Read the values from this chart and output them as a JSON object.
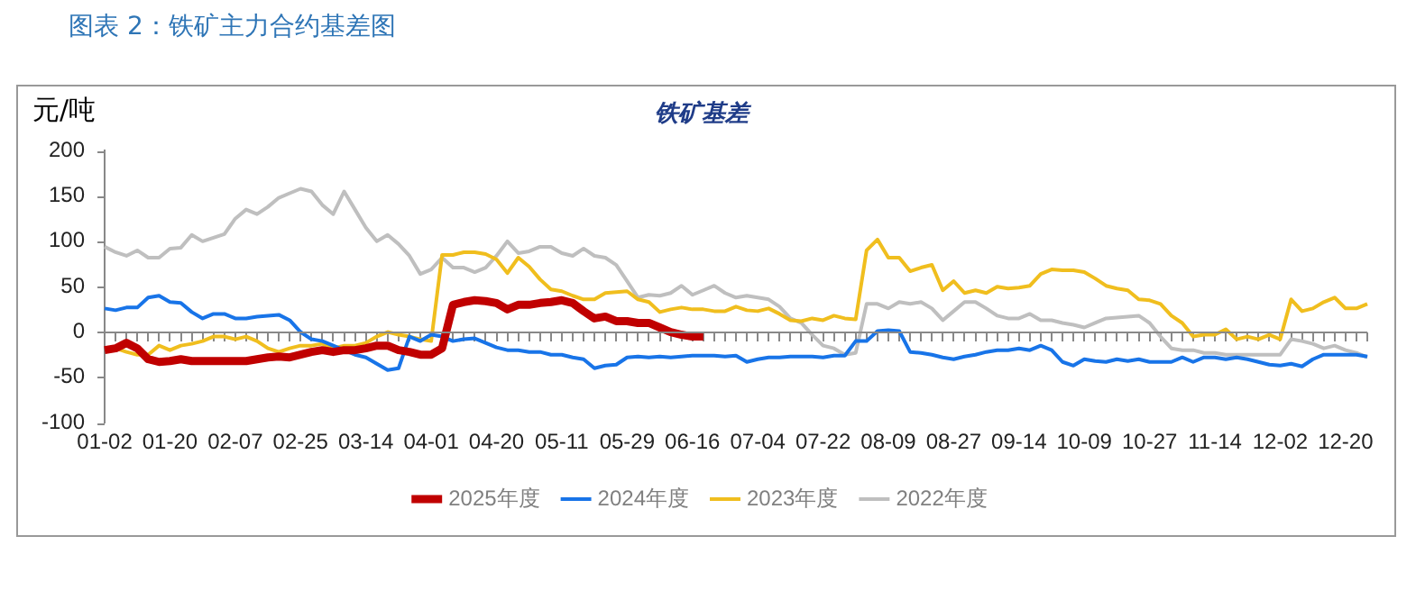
{
  "chart_data": {
    "type": "line",
    "title": "图表 2：铁矿主力合约基差图",
    "subtitle": "铁矿基差",
    "ylabel": "元/吨",
    "categories": [
      "01-02",
      null,
      null,
      null,
      null,
      null,
      "01-20",
      null,
      null,
      null,
      null,
      null,
      "02-07",
      null,
      null,
      null,
      null,
      null,
      "02-25",
      null,
      null,
      null,
      null,
      null,
      "03-14",
      null,
      null,
      null,
      null,
      null,
      "04-01",
      null,
      null,
      null,
      null,
      null,
      "04-20",
      null,
      null,
      null,
      null,
      null,
      "05-11",
      null,
      null,
      null,
      null,
      null,
      "05-29",
      null,
      null,
      null,
      null,
      null,
      "06-16",
      null,
      null,
      null,
      null,
      null,
      "07-04",
      null,
      null,
      null,
      null,
      null,
      "07-22",
      null,
      null,
      null,
      null,
      null,
      "08-09",
      null,
      null,
      null,
      null,
      null,
      "08-27",
      null,
      null,
      null,
      null,
      null,
      "09-14",
      null,
      null,
      null,
      null,
      null,
      "10-09",
      null,
      null,
      null,
      null,
      null,
      "10-27",
      null,
      null,
      null,
      null,
      null,
      "11-14",
      null,
      null,
      null,
      null,
      null,
      "12-02",
      null,
      null,
      null,
      null,
      null,
      "12-20",
      null,
      null
    ],
    "series": [
      {
        "name": "2025年度",
        "color": "#c00000",
        "values": [
          -20,
          -18,
          -12,
          -18,
          -30,
          -33,
          -32,
          -30,
          -32,
          -32,
          -32,
          -32,
          -32,
          -32,
          -30,
          -28,
          -27,
          -28,
          -25,
          -22,
          -20,
          -22,
          -20,
          -20,
          -18,
          -15,
          -15,
          -20,
          -22,
          -25,
          -25,
          -18,
          30,
          33,
          35,
          34,
          32,
          25,
          30,
          30,
          32,
          33,
          35,
          32,
          23,
          15,
          17,
          12,
          12,
          10,
          10,
          5,
          0,
          -3,
          -5,
          -5,
          null,
          null,
          null,
          null,
          null,
          null,
          null,
          null,
          null,
          null,
          null,
          null,
          null,
          null,
          null,
          null,
          null,
          null,
          null,
          null,
          null,
          null,
          null,
          null,
          null,
          null,
          null,
          null,
          null,
          null,
          null,
          null,
          null,
          null,
          null,
          null,
          null,
          null,
          null,
          null,
          null,
          null,
          null,
          null,
          null,
          null,
          null,
          null,
          null,
          null,
          null,
          null,
          null,
          null,
          null,
          null,
          null,
          null,
          null,
          null,
          null
        ]
      },
      {
        "name": "2024年度",
        "color": "#1874e8",
        "values": [
          26,
          24,
          27,
          27,
          38,
          40,
          33,
          32,
          22,
          15,
          20,
          20,
          15,
          15,
          17,
          18,
          19,
          13,
          0,
          -8,
          -10,
          -15,
          -20,
          -25,
          -28,
          -35,
          -42,
          -40,
          -5,
          -10,
          -3,
          -5,
          -10,
          -8,
          -7,
          -12,
          -17,
          -20,
          -20,
          -22,
          -22,
          -25,
          -25,
          -28,
          -30,
          -40,
          -37,
          -36,
          -28,
          -27,
          -28,
          -27,
          -28,
          -27,
          -26,
          -26,
          -26,
          -27,
          -26,
          -33,
          -30,
          -28,
          -28,
          -27,
          -27,
          -27,
          -28,
          -26,
          -26,
          -10,
          -10,
          1,
          2,
          1,
          -22,
          -23,
          -25,
          -28,
          -30,
          -27,
          -25,
          -22,
          -20,
          -20,
          -18,
          -20,
          -15,
          -20,
          -33,
          -37,
          -30,
          -32,
          -33,
          -30,
          -32,
          -30,
          -33,
          -33,
          -33,
          -28,
          -33,
          -28,
          -28,
          -30,
          -28,
          -30,
          -33,
          -36,
          -37,
          -35,
          -38,
          -30,
          -25,
          -25,
          -25,
          -25,
          -27
        ]
      },
      {
        "name": "2023年度",
        "color": "#f0be1e",
        "values": [
          -18,
          -18,
          -22,
          -25,
          -25,
          -15,
          -20,
          -15,
          -13,
          -10,
          -5,
          -5,
          -8,
          -5,
          -10,
          -18,
          -22,
          -18,
          -15,
          -15,
          -13,
          -18,
          -15,
          -15,
          -12,
          -5,
          0,
          -3,
          -5,
          -8,
          -10,
          85,
          85,
          88,
          88,
          86,
          80,
          65,
          82,
          72,
          58,
          47,
          45,
          40,
          36,
          36,
          43,
          44,
          45,
          36,
          33,
          22,
          25,
          27,
          25,
          25,
          23,
          23,
          28,
          24,
          23,
          26,
          20,
          13,
          12,
          15,
          13,
          18,
          15,
          14,
          90,
          102,
          82,
          82,
          67,
          71,
          74,
          46,
          56,
          43,
          46,
          43,
          50,
          48,
          49,
          51,
          64,
          69,
          68,
          68,
          66,
          59,
          51,
          48,
          46,
          36,
          35,
          31,
          18,
          10,
          -5,
          -3,
          -3,
          3,
          -8,
          -5,
          -8,
          -3,
          -8,
          36,
          23,
          26,
          33,
          38,
          26,
          26,
          31
        ]
      },
      {
        "name": "2022年度",
        "color": "#bfbfbf",
        "values": [
          94,
          88,
          84,
          90,
          82,
          82,
          92,
          93,
          107,
          100,
          104,
          108,
          125,
          135,
          130,
          138,
          148,
          153,
          158,
          155,
          140,
          130,
          155,
          135,
          115,
          100,
          107,
          97,
          84,
          64,
          69,
          82,
          71,
          71,
          66,
          71,
          84,
          100,
          87,
          89,
          94,
          94,
          87,
          84,
          92,
          84,
          82,
          74,
          56,
          38,
          41,
          40,
          43,
          51,
          41,
          46,
          51,
          43,
          38,
          40,
          38,
          36,
          28,
          15,
          10,
          -3,
          -15,
          -18,
          -25,
          -23,
          31,
          31,
          26,
          33,
          31,
          33,
          26,
          13,
          23,
          33,
          33,
          26,
          18,
          15,
          15,
          20,
          13,
          13,
          10,
          8,
          5,
          10,
          15,
          16,
          17,
          18,
          10,
          -5,
          -18,
          -20,
          -20,
          -23,
          -23,
          -25,
          -25,
          -25,
          -25,
          -25,
          -25,
          -8,
          -10,
          -13,
          -18,
          -15,
          -20,
          -23,
          -28
        ]
      }
    ],
    "ref_lines": [
      {
        "axis": "y",
        "value": 0
      }
    ],
    "ylim": [
      -100,
      200
    ],
    "yticks": [
      -100,
      -50,
      0,
      50,
      100,
      150,
      200
    ],
    "grid": false,
    "legend": "bottom"
  }
}
